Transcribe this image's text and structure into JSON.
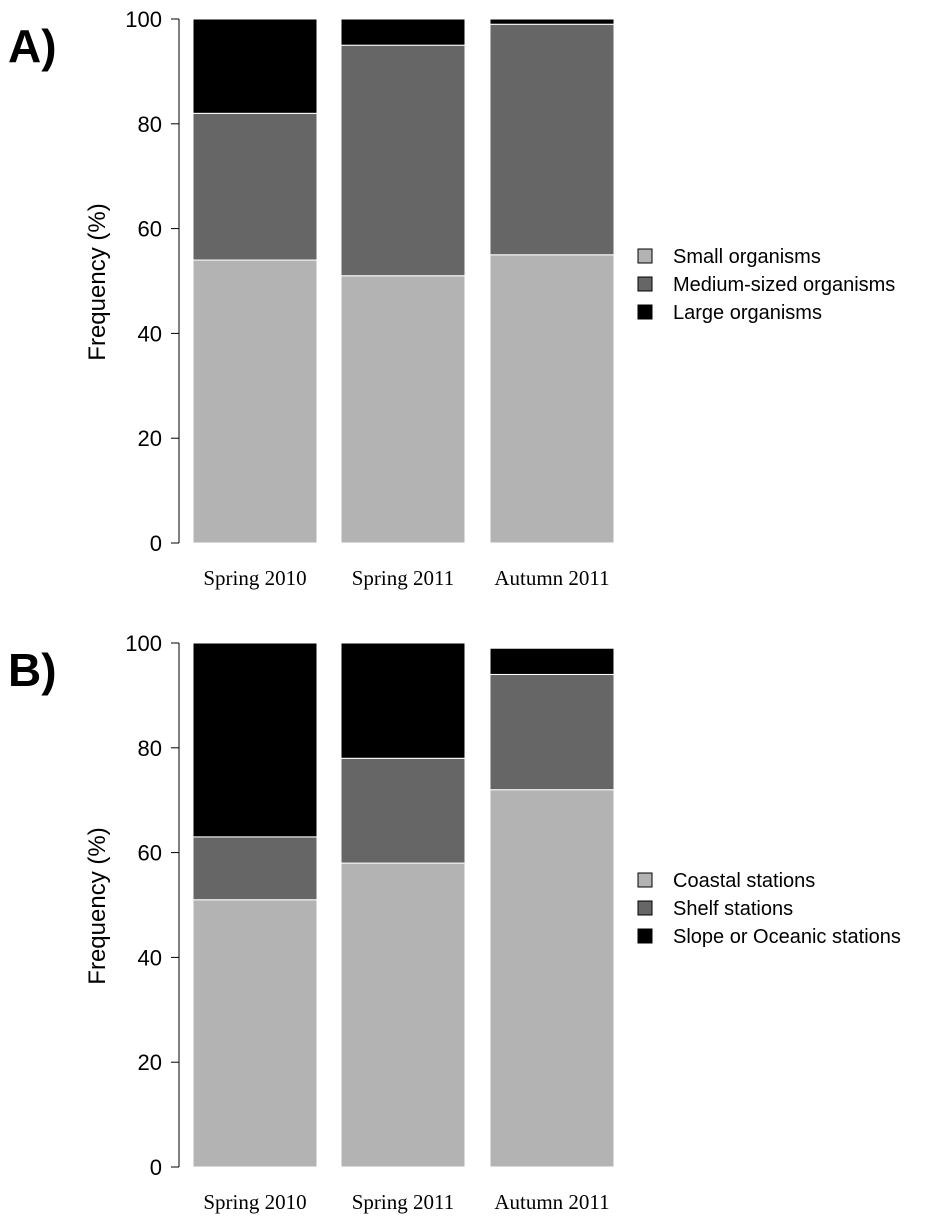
{
  "chart_data": [
    {
      "type": "bar",
      "stacked": true,
      "panel_label": "A)",
      "ylabel": "Frequency (%)",
      "ylim": [
        0,
        100
      ],
      "yticks": [
        0,
        20,
        40,
        60,
        80,
        100
      ],
      "categories": [
        "Spring 2010",
        "Spring 2011",
        "Autumn 2011"
      ],
      "legend_position": "right",
      "series": [
        {
          "name": "Small organisms",
          "color": "#b3b3b3",
          "values": [
            54,
            51,
            55
          ]
        },
        {
          "name": "Medium-sized organisms",
          "color": "#666666",
          "values": [
            28,
            44,
            44
          ]
        },
        {
          "name": "Large organisms",
          "color": "#000000",
          "values": [
            18,
            5,
            1
          ]
        }
      ]
    },
    {
      "type": "bar",
      "stacked": true,
      "panel_label": "B)",
      "ylabel": "Frequency (%)",
      "ylim": [
        0,
        100
      ],
      "yticks": [
        0,
        20,
        40,
        60,
        80,
        100
      ],
      "categories": [
        "Spring 2010",
        "Spring 2011",
        "Autumn 2011"
      ],
      "legend_position": "right",
      "series": [
        {
          "name": "Coastal stations",
          "color": "#b3b3b3",
          "values": [
            51,
            58,
            72
          ]
        },
        {
          "name": "Shelf stations",
          "color": "#666666",
          "values": [
            12,
            20,
            22
          ]
        },
        {
          "name": "Slope or Oceanic stations",
          "color": "#000000",
          "values": [
            37,
            22,
            5
          ]
        }
      ]
    }
  ]
}
